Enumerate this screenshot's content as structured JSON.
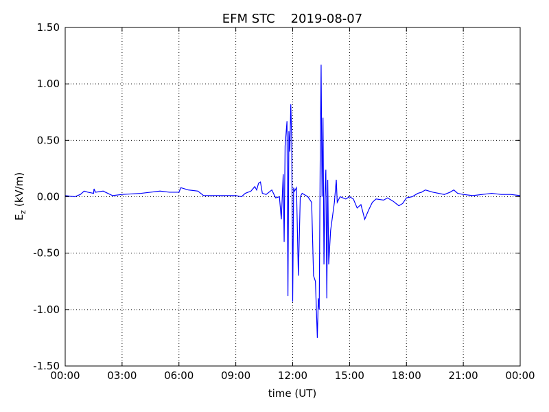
{
  "chart_data": {
    "type": "line",
    "title": "EFM STC    2019-08-07",
    "xlabel": "time (UT)",
    "ylabel": {
      "main": "E",
      "sub": "z",
      "unit": " (kV/m)"
    },
    "xlim": [
      0,
      24
    ],
    "xticks": [
      {
        "value": 0,
        "label": "00:00"
      },
      {
        "value": 3,
        "label": "03:00"
      },
      {
        "value": 6,
        "label": "06:00"
      },
      {
        "value": 9,
        "label": "09:00"
      },
      {
        "value": 12,
        "label": "12:00"
      },
      {
        "value": 15,
        "label": "15:00"
      },
      {
        "value": 18,
        "label": "18:00"
      },
      {
        "value": 21,
        "label": "21:00"
      },
      {
        "value": 24,
        "label": "00:00"
      }
    ],
    "ylim": [
      -1.5,
      1.5
    ],
    "yticks": [
      {
        "value": -1.5,
        "label": "-1.50"
      },
      {
        "value": -1.0,
        "label": "-1.00"
      },
      {
        "value": -0.5,
        "label": "-0.50"
      },
      {
        "value": 0,
        "label": "0.00"
      },
      {
        "value": 0.5,
        "label": "0.50"
      },
      {
        "value": 1.0,
        "label": "1.00"
      },
      {
        "value": 1.5,
        "label": "1.50"
      }
    ],
    "grid": true,
    "color": "#0000ff",
    "x": [
      0,
      0.5,
      0.8,
      1.0,
      1.2,
      1.5,
      1.52,
      1.6,
      2.0,
      2.5,
      3.0,
      4.0,
      4.5,
      5.0,
      5.5,
      6.0,
      6.1,
      6.5,
      7.0,
      7.3,
      8.0,
      9.0,
      9.3,
      9.5,
      9.8,
      10.0,
      10.1,
      10.2,
      10.3,
      10.4,
      10.6,
      10.9,
      11.1,
      11.3,
      11.4,
      11.5,
      11.55,
      11.6,
      11.7,
      11.75,
      11.8,
      11.85,
      11.9,
      11.95,
      12.0,
      12.05,
      12.1,
      12.2,
      12.3,
      12.4,
      12.5,
      12.8,
      13.0,
      13.1,
      13.2,
      13.3,
      13.35,
      13.4,
      13.45,
      13.5,
      13.55,
      13.6,
      13.65,
      13.7,
      13.75,
      13.8,
      13.85,
      13.9,
      14.0,
      14.2,
      14.3,
      14.35,
      14.5,
      14.8,
      15.0,
      15.2,
      15.4,
      15.6,
      15.8,
      16.0,
      16.2,
      16.4,
      16.8,
      17.0,
      17.3,
      17.6,
      17.8,
      18.0,
      18.3,
      18.6,
      18.8,
      19.0,
      19.2,
      19.4,
      19.7,
      20.0,
      20.3,
      20.5,
      20.7,
      21.0,
      21.5,
      22.0,
      22.5,
      23.0,
      23.5,
      24.0
    ],
    "values": [
      0.01,
      0.0,
      0.02,
      0.05,
      0.04,
      0.03,
      0.07,
      0.04,
      0.05,
      0.01,
      0.02,
      0.03,
      0.04,
      0.05,
      0.04,
      0.04,
      0.08,
      0.06,
      0.05,
      0.01,
      0.01,
      0.01,
      0.0,
      0.03,
      0.05,
      0.09,
      0.06,
      0.12,
      0.13,
      0.03,
      0.02,
      0.06,
      -0.01,
      0.0,
      -0.2,
      0.2,
      -0.4,
      0.45,
      0.67,
      -0.88,
      0.58,
      0.4,
      0.82,
      0.5,
      -0.93,
      0.08,
      0.05,
      0.08,
      -0.7,
      0.0,
      0.03,
      0.0,
      -0.05,
      -0.7,
      -0.75,
      -1.25,
      -0.9,
      -1.0,
      0.3,
      1.17,
      0.0,
      0.7,
      -0.6,
      0.0,
      0.24,
      -0.9,
      0.15,
      -0.6,
      -0.3,
      -0.05,
      0.15,
      -0.05,
      0.0,
      -0.02,
      0.0,
      -0.02,
      -0.1,
      -0.07,
      -0.2,
      -0.12,
      -0.05,
      -0.02,
      -0.03,
      -0.01,
      -0.04,
      -0.08,
      -0.06,
      -0.01,
      0.0,
      0.03,
      0.04,
      0.06,
      0.05,
      0.04,
      0.03,
      0.02,
      0.04,
      0.06,
      0.03,
      0.02,
      0.01,
      0.02,
      0.03,
      0.02,
      0.02,
      0.01
    ]
  }
}
